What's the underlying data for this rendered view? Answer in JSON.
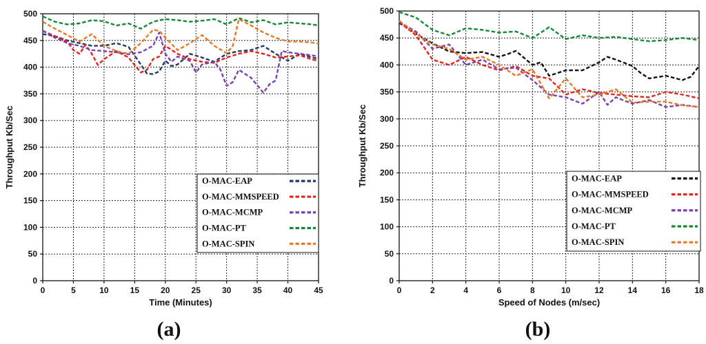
{
  "chart_data": [
    {
      "type": "line",
      "panel_label": "(a)",
      "xlabel": "Time (Minutes)",
      "ylabel": "Throughput Kb/Sec",
      "xlim": [
        0,
        45
      ],
      "ylim": [
        0,
        500
      ],
      "xticks": [
        0,
        5,
        10,
        15,
        20,
        25,
        30,
        35,
        40,
        45
      ],
      "yticks": [
        0,
        50,
        100,
        150,
        200,
        250,
        300,
        350,
        400,
        450,
        500
      ],
      "grid": true,
      "legend_position": "center-right",
      "series": [
        {
          "name": "O-MAC-EAP",
          "color": "#1f3864",
          "x": [
            0,
            2,
            4,
            6,
            8,
            10,
            12,
            14,
            16,
            17,
            18,
            19,
            20,
            21,
            22,
            24,
            26,
            28,
            30,
            32,
            34,
            36,
            38,
            40,
            42,
            44,
            45
          ],
          "y": [
            462,
            458,
            450,
            445,
            440,
            440,
            445,
            438,
            405,
            388,
            387,
            392,
            412,
            402,
            405,
            425,
            418,
            410,
            425,
            430,
            432,
            440,
            425,
            412,
            425,
            418,
            416
          ]
        },
        {
          "name": "O-MAC-MMSPEED",
          "color": "#e8201a",
          "x": [
            0,
            2,
            4,
            5,
            6,
            7,
            8,
            9,
            10,
            12,
            14,
            16,
            17,
            18,
            19,
            20,
            22,
            24,
            26,
            28,
            30,
            32,
            34,
            36,
            38,
            40,
            42,
            44,
            45
          ],
          "y": [
            468,
            458,
            448,
            432,
            425,
            442,
            425,
            404,
            415,
            430,
            418,
            390,
            395,
            415,
            420,
            440,
            425,
            415,
            410,
            408,
            418,
            425,
            430,
            425,
            418,
            420,
            422,
            414,
            412
          ]
        },
        {
          "name": "O-MAC-MCMP",
          "color": "#7a3fb3",
          "x": [
            0,
            2,
            4,
            6,
            8,
            10,
            12,
            14,
            16,
            18,
            19,
            20,
            21,
            22,
            24,
            25,
            26,
            28,
            29,
            30,
            31,
            32,
            34,
            36,
            37,
            38,
            39,
            40,
            42,
            44,
            45
          ],
          "y": [
            468,
            455,
            445,
            440,
            432,
            430,
            428,
            424,
            428,
            440,
            465,
            425,
            410,
            420,
            412,
            390,
            405,
            410,
            395,
            365,
            372,
            395,
            380,
            352,
            368,
            375,
            430,
            428,
            425,
            422,
            420
          ]
        },
        {
          "name": "O-MAC-PT",
          "color": "#118a33",
          "x": [
            0,
            2,
            4,
            6,
            8,
            10,
            12,
            14,
            16,
            18,
            20,
            22,
            24,
            26,
            28,
            30,
            32,
            34,
            36,
            38,
            40,
            42,
            44,
            45
          ],
          "y": [
            495,
            485,
            480,
            482,
            488,
            486,
            478,
            482,
            472,
            485,
            490,
            488,
            485,
            487,
            490,
            480,
            492,
            484,
            488,
            480,
            484,
            482,
            480,
            478
          ]
        },
        {
          "name": "O-MAC-SPIN",
          "color": "#e87722",
          "x": [
            0,
            2,
            4,
            6,
            8,
            10,
            12,
            14,
            16,
            18,
            19,
            20,
            22,
            24,
            26,
            28,
            30,
            31,
            32,
            34,
            36,
            38,
            40,
            42,
            44,
            45
          ],
          "y": [
            485,
            472,
            460,
            448,
            462,
            440,
            430,
            425,
            445,
            470,
            468,
            455,
            432,
            445,
            460,
            440,
            426,
            440,
            490,
            478,
            465,
            455,
            448,
            448,
            446,
            444
          ]
        }
      ]
    },
    {
      "type": "line",
      "panel_label": "(b)",
      "xlabel": "Speed of Nodes (m/sec)",
      "ylabel": "Throughput Kb/Sec",
      "xlim": [
        0,
        18
      ],
      "ylim": [
        0,
        500
      ],
      "xticks": [
        0,
        2,
        4,
        6,
        8,
        10,
        12,
        14,
        16,
        18
      ],
      "yticks": [
        0,
        50,
        100,
        150,
        200,
        250,
        300,
        350,
        400,
        450,
        500
      ],
      "grid": true,
      "legend_position": "center-right",
      "series": [
        {
          "name": "O-MAC-EAP",
          "color": "#111111",
          "x": [
            0,
            1,
            2,
            3,
            4,
            5,
            6,
            6.5,
            7,
            8,
            8.5,
            9,
            10,
            11,
            12,
            12.5,
            13,
            14,
            14.5,
            15,
            16,
            17,
            17.5,
            18
          ],
          "y": [
            478,
            458,
            440,
            425,
            422,
            424,
            415,
            420,
            426,
            400,
            405,
            380,
            390,
            390,
            405,
            415,
            410,
            398,
            385,
            375,
            380,
            372,
            378,
            398
          ]
        },
        {
          "name": "O-MAC-MMSPEED",
          "color": "#e8201a",
          "x": [
            0,
            1,
            2,
            3,
            4,
            5,
            6,
            7,
            8,
            9,
            9.5,
            10,
            11,
            12,
            13,
            14,
            15,
            16,
            17,
            18
          ],
          "y": [
            480,
            455,
            410,
            400,
            415,
            400,
            390,
            398,
            380,
            375,
            360,
            345,
            355,
            348,
            345,
            342,
            340,
            350,
            345,
            338
          ]
        },
        {
          "name": "O-MAC-MCMP",
          "color": "#7a3fb3",
          "x": [
            0,
            1,
            2,
            3,
            4,
            5,
            6,
            7,
            8,
            9,
            10,
            11,
            12,
            12.5,
            13,
            14,
            15,
            16,
            17,
            18
          ],
          "y": [
            480,
            462,
            430,
            438,
            400,
            410,
            392,
            395,
            372,
            345,
            340,
            328,
            350,
            326,
            340,
            328,
            335,
            322,
            326,
            322
          ]
        },
        {
          "name": "O-MAC-PT",
          "color": "#118a33",
          "x": [
            0,
            1,
            2,
            3,
            4,
            5,
            6,
            7,
            8,
            9,
            10,
            11,
            12,
            13,
            14,
            15,
            16,
            17,
            18
          ],
          "y": [
            498,
            488,
            465,
            455,
            468,
            465,
            460,
            462,
            450,
            470,
            448,
            455,
            450,
            452,
            448,
            444,
            446,
            450,
            446
          ]
        },
        {
          "name": "O-MAC-SPIN",
          "color": "#e87722",
          "x": [
            0,
            1,
            2,
            3,
            4,
            5,
            6,
            7,
            8,
            9,
            10,
            11,
            12,
            13,
            14,
            15,
            16,
            17,
            18
          ],
          "y": [
            482,
            458,
            438,
            430,
            410,
            415,
            400,
            380,
            392,
            338,
            375,
            340,
            345,
            355,
            330,
            332,
            332,
            325,
            322
          ]
        }
      ]
    }
  ]
}
